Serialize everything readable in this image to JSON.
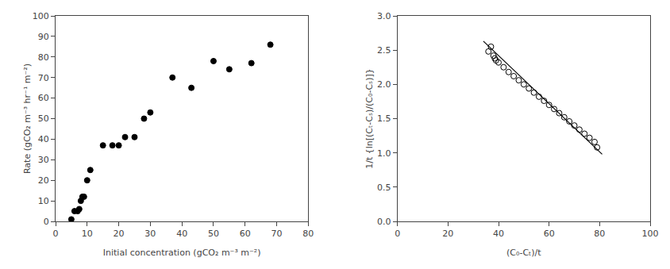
{
  "chart_data": [
    {
      "type": "scatter",
      "x": [
        5,
        6,
        7,
        7.5,
        8,
        8.5,
        9,
        10,
        11,
        15,
        18,
        20,
        22,
        25,
        28,
        30,
        37,
        43,
        50,
        55,
        62,
        68
      ],
      "values": [
        1,
        5,
        5,
        6,
        10,
        12,
        12,
        20,
        25,
        37,
        37,
        37,
        41,
        41,
        50,
        53,
        70,
        65,
        78,
        74,
        77,
        86
      ],
      "color": "black",
      "marker": "circle",
      "xlabel": "Initial concentration (gCO₂ m⁻³ m⁻²)",
      "ylabel": "Rate (gCO₂ m⁻³ hr⁻¹ m⁻²)",
      "xlim": [
        0,
        80
      ],
      "ylim": [
        0,
        100
      ],
      "xticks": [
        0,
        10,
        20,
        30,
        40,
        50,
        60,
        70,
        80
      ],
      "yticks": [
        0,
        10,
        20,
        30,
        40,
        50,
        60,
        70,
        80,
        90,
        100
      ],
      "grid": false
    },
    {
      "type": "scatter",
      "series": [
        {
          "type": "scatter",
          "color": "black",
          "marker": "open circle",
          "x": [
            36,
            37,
            38,
            38.5,
            39,
            40,
            42,
            44,
            46,
            48,
            50,
            52,
            54,
            56,
            58,
            60,
            62,
            64,
            66,
            68,
            70,
            72,
            74,
            76,
            78,
            79
          ],
          "values": [
            2.48,
            2.55,
            2.42,
            2.38,
            2.35,
            2.32,
            2.25,
            2.18,
            2.12,
            2.06,
            2.0,
            1.94,
            1.88,
            1.82,
            1.76,
            1.7,
            1.64,
            1.58,
            1.52,
            1.46,
            1.4,
            1.34,
            1.28,
            1.22,
            1.16,
            1.08
          ]
        },
        {
          "type": "line",
          "color": "black",
          "line_style": "solid",
          "x": [
            34,
            81
          ],
          "values": [
            2.63,
            0.98
          ]
        }
      ],
      "xlabel": "(C₀-Cₜ)/t",
      "ylabel": "1/t {ln[(Cₜ-Cₛ)/(C₀-Cₛ)]}",
      "xlim": [
        0,
        100
      ],
      "ylim": [
        0,
        3
      ],
      "xticks": [
        0,
        20,
        40,
        60,
        80,
        100
      ],
      "yticks": [
        {
          "value": 0,
          "label": "0.0"
        },
        0.5,
        {
          "value": 1.0,
          "label": "1.0"
        },
        1.5,
        {
          "value": 2.0,
          "label": "2.0"
        },
        2.5,
        {
          "value": 3.0,
          "label": "3.0"
        }
      ],
      "grid": false
    }
  ]
}
